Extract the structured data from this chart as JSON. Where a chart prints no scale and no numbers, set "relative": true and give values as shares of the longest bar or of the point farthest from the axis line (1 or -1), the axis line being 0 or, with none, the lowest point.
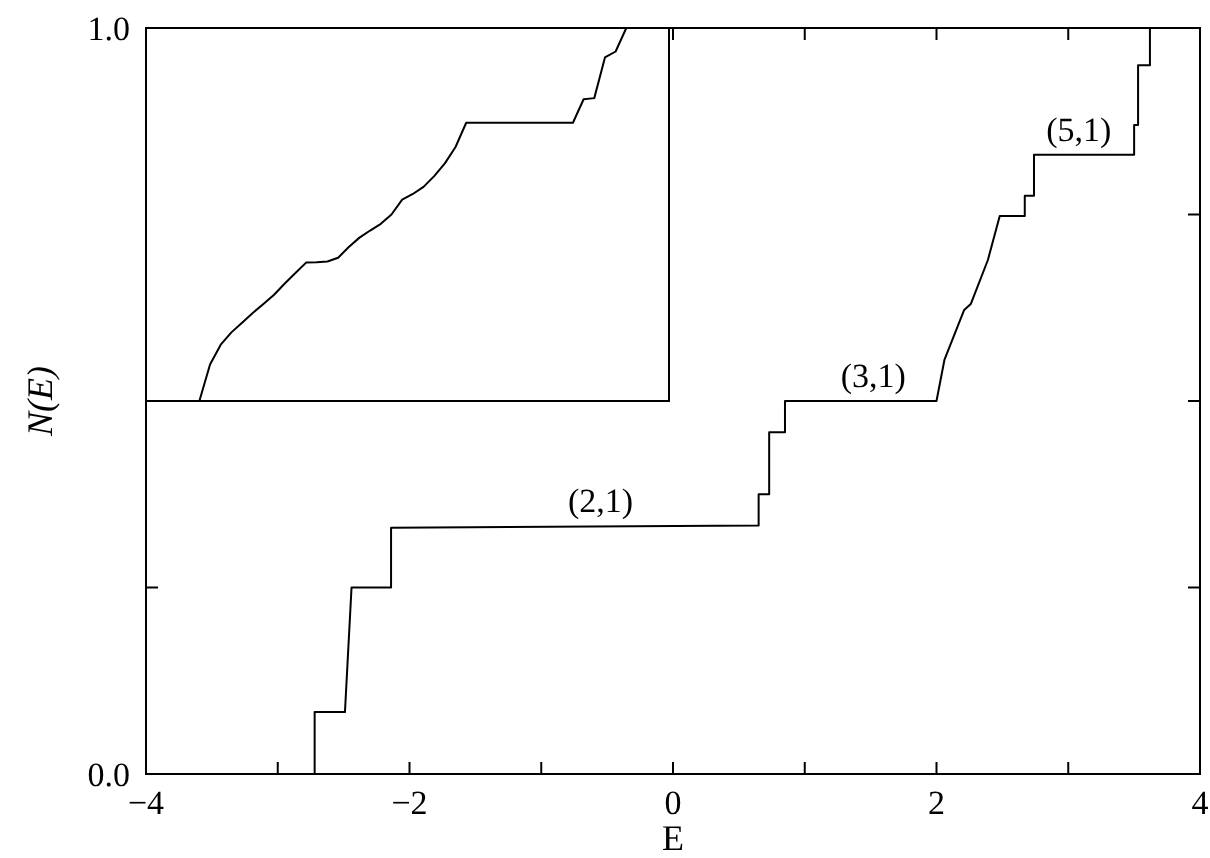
{
  "chart_data": [
    {
      "type": "line",
      "xlabel": "E",
      "ylabel": "N(E)",
      "xlim": [
        -4,
        4
      ],
      "ylim": [
        0,
        1
      ],
      "xticks": [
        {
          "value": -4,
          "label": "−4"
        },
        {
          "value": -3,
          "label": null
        },
        {
          "value": -2,
          "label": "−2"
        },
        {
          "value": -1,
          "label": null
        },
        0,
        {
          "value": 1,
          "label": null
        },
        2,
        {
          "value": 3,
          "label": null
        },
        4
      ],
      "yticks": [
        {
          "value": 0,
          "label": "0.0"
        },
        {
          "value": 0.25,
          "label": null
        },
        {
          "value": 0.5,
          "label": null
        },
        {
          "value": 0.75,
          "label": null
        },
        {
          "value": 1,
          "label": "1.0"
        }
      ],
      "grid": false,
      "line_style": "solid",
      "marker": "none",
      "series": [
        {
          "color": "#000000",
          "x": [
            -2.72,
            -2.72,
            -2.49,
            -2.44,
            -2.14,
            -2.14,
            0.65,
            0.65,
            0.73,
            0.73,
            0.85,
            0.85,
            2.0,
            2.06,
            2.21,
            2.26,
            2.39,
            2.48,
            2.67,
            2.67,
            2.74,
            2.74,
            3.5,
            3.5,
            3.53,
            3.53,
            3.62,
            3.62
          ],
          "values": [
            0,
            0.083,
            0.083,
            0.25,
            0.25,
            0.33,
            0.333,
            0.375,
            0.375,
            0.458,
            0.458,
            0.5,
            0.5,
            0.555,
            0.622,
            0.63,
            0.689,
            0.748,
            0.748,
            0.775,
            0.775,
            0.83,
            0.83,
            0.87,
            0.87,
            0.95,
            0.95,
            1.0
          ]
        }
      ],
      "annotations": [
        {
          "text": "(2,1)",
          "x": -0.55,
          "y": 0.333
        },
        {
          "text": "(3,1)",
          "x": 1.52,
          "y": 0.5
        },
        {
          "text": "(5,1)",
          "x": 3.08,
          "y": 0.83
        }
      ]
    },
    {
      "type": "line",
      "relative": true,
      "line_style": "solid",
      "marker": "none",
      "categories": [
        null,
        null,
        null,
        null,
        null,
        null,
        null,
        null,
        null,
        null,
        null,
        null,
        null,
        null,
        null,
        null,
        null,
        null,
        null,
        null,
        null,
        null,
        null,
        null,
        null,
        null,
        null,
        null,
        null,
        null,
        null,
        null,
        null,
        null,
        null,
        null,
        null,
        null,
        null,
        null,
        null,
        null,
        null,
        null,
        null,
        null,
        null,
        null,
        null,
        null
      ],
      "series": [
        {
          "color": "#000000",
          "values": [
            0,
            0,
            0,
            0,
            0,
            0,
            0.098,
            0.151,
            0.184,
            0.21,
            0.236,
            0.26,
            0.285,
            0.315,
            0.343,
            0.371,
            0.372,
            0.374,
            0.384,
            0.413,
            0.438,
            0.457,
            0.475,
            0.5,
            0.54,
            0.555,
            0.574,
            0.603,
            0.637,
            0.681,
            0.746,
            0.746,
            0.746,
            0.746,
            0.746,
            0.746,
            0.746,
            0.746,
            0.746,
            0.746,
            0.746,
            0.809,
            0.812,
            0.921,
            0.937,
            1.0,
            null,
            null,
            null,
            null
          ]
        }
      ]
    }
  ]
}
